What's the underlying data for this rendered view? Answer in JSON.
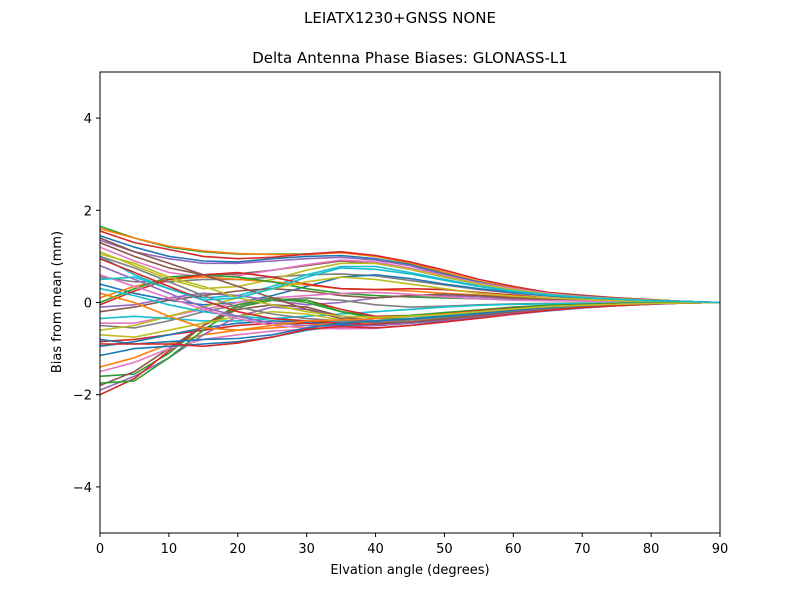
{
  "figure": {
    "suptitle": "LEIATX1230+GNSS NONE",
    "title": "Delta Antenna Phase Biases: GLONASS-L1"
  },
  "chart_data": {
    "type": "line",
    "title": "Delta Antenna Phase Biases: GLONASS-L1",
    "suptitle": "LEIATX1230+GNSS NONE",
    "xlabel": "Elvation angle (degrees)",
    "ylabel": "Bias from mean (mm)",
    "xlim": [
      0,
      90
    ],
    "ylim": [
      -5,
      5
    ],
    "xticks": [
      0,
      10,
      20,
      30,
      40,
      50,
      60,
      70,
      80,
      90
    ],
    "yticks": [
      -4,
      -2,
      0,
      2,
      4
    ],
    "ytick_labels": [
      "−4",
      "−2",
      "0",
      "2",
      "4"
    ],
    "grid": false,
    "legend": null,
    "x": [
      0,
      5,
      10,
      15,
      20,
      25,
      30,
      35,
      40,
      45,
      50,
      55,
      60,
      65,
      70,
      75,
      80,
      85,
      90
    ],
    "series": [
      {
        "name": "s1",
        "color": "#2ca02c",
        "values": [
          1.65,
          1.4,
          1.2,
          1.1,
          1.05,
          1.05,
          1.05,
          1.1,
          1.0,
          0.85,
          0.65,
          0.45,
          0.3,
          0.2,
          0.15,
          0.1,
          0.06,
          0.02,
          0.0
        ]
      },
      {
        "name": "s2",
        "color": "#ff7f0e",
        "values": [
          1.6,
          1.4,
          1.22,
          1.12,
          1.06,
          1.04,
          1.04,
          1.08,
          1.0,
          0.86,
          0.66,
          0.46,
          0.32,
          0.22,
          0.16,
          0.1,
          0.06,
          0.02,
          0.0
        ]
      },
      {
        "name": "s3",
        "color": "#d62728",
        "values": [
          1.55,
          1.3,
          1.15,
          1.0,
          0.95,
          0.98,
          1.05,
          1.1,
          1.02,
          0.88,
          0.7,
          0.5,
          0.35,
          0.22,
          0.15,
          0.1,
          0.06,
          0.02,
          0.0
        ]
      },
      {
        "name": "s4",
        "color": "#1f77b4",
        "values": [
          1.45,
          1.2,
          1.0,
          0.9,
          0.88,
          0.95,
          1.0,
          1.02,
          0.95,
          0.82,
          0.62,
          0.44,
          0.3,
          0.2,
          0.14,
          0.09,
          0.05,
          0.02,
          0.0
        ]
      },
      {
        "name": "s5",
        "color": "#9467bd",
        "values": [
          1.35,
          1.1,
          0.95,
          0.85,
          0.85,
          0.9,
          0.95,
          0.98,
          0.92,
          0.8,
          0.6,
          0.42,
          0.28,
          0.18,
          0.13,
          0.08,
          0.05,
          0.02,
          0.0
        ]
      },
      {
        "name": "s6",
        "color": "#8c564b",
        "values": [
          1.3,
          1.0,
          0.75,
          0.6,
          0.62,
          0.7,
          0.8,
          0.9,
          0.85,
          0.72,
          0.55,
          0.4,
          0.28,
          0.18,
          0.12,
          0.08,
          0.04,
          0.02,
          0.0
        ]
      },
      {
        "name": "s7",
        "color": "#e377c2",
        "values": [
          1.2,
          0.9,
          0.65,
          0.55,
          0.58,
          0.7,
          0.82,
          0.92,
          0.88,
          0.75,
          0.58,
          0.42,
          0.3,
          0.2,
          0.13,
          0.08,
          0.05,
          0.02,
          0.0
        ]
      },
      {
        "name": "s8",
        "color": "#7f7f7f",
        "values": [
          0.55,
          0.45,
          0.45,
          0.5,
          0.5,
          0.55,
          0.6,
          0.62,
          0.58,
          0.48,
          0.38,
          0.28,
          0.2,
          0.14,
          0.1,
          0.06,
          0.04,
          0.02,
          0.0
        ]
      },
      {
        "name": "s9",
        "color": "#bcbd22",
        "values": [
          1.1,
          0.8,
          0.5,
          0.3,
          0.35,
          0.5,
          0.7,
          0.85,
          0.85,
          0.72,
          0.56,
          0.4,
          0.28,
          0.18,
          0.12,
          0.08,
          0.05,
          0.02,
          0.0
        ]
      },
      {
        "name": "s10",
        "color": "#17becf",
        "values": [
          1.0,
          0.6,
          0.3,
          0.1,
          0.15,
          0.35,
          0.6,
          0.78,
          0.78,
          0.65,
          0.5,
          0.36,
          0.25,
          0.17,
          0.11,
          0.07,
          0.04,
          0.02,
          0.0
        ]
      },
      {
        "name": "s11",
        "color": "#1f77b4",
        "values": [
          0.4,
          0.2,
          0.05,
          -0.05,
          0.0,
          0.15,
          0.35,
          0.55,
          0.6,
          0.52,
          0.4,
          0.3,
          0.22,
          0.15,
          0.1,
          0.06,
          0.04,
          0.02,
          0.0
        ]
      },
      {
        "name": "s12",
        "color": "#ff7f0e",
        "values": [
          0.1,
          0.35,
          0.5,
          0.55,
          0.5,
          0.45,
          0.38,
          0.3,
          0.28,
          0.25,
          0.2,
          0.16,
          0.12,
          0.08,
          0.06,
          0.04,
          0.02,
          0.01,
          0.0
        ]
      },
      {
        "name": "s13",
        "color": "#2ca02c",
        "values": [
          0.0,
          0.3,
          0.55,
          0.6,
          0.55,
          0.45,
          0.3,
          0.2,
          0.15,
          0.12,
          0.1,
          0.08,
          0.06,
          0.05,
          0.04,
          0.03,
          0.02,
          0.01,
          0.0
        ]
      },
      {
        "name": "s14",
        "color": "#d62728",
        "values": [
          -0.05,
          0.25,
          0.5,
          0.6,
          0.65,
          0.55,
          0.4,
          0.3,
          0.28,
          0.3,
          0.28,
          0.22,
          0.16,
          0.1,
          0.07,
          0.05,
          0.03,
          0.01,
          0.0
        ]
      },
      {
        "name": "s15",
        "color": "#9467bd",
        "values": [
          -0.1,
          -0.05,
          0.1,
          0.2,
          0.15,
          0.05,
          -0.05,
          0.0,
          0.1,
          0.15,
          0.15,
          0.12,
          0.09,
          0.06,
          0.04,
          0.03,
          0.02,
          0.01,
          0.0
        ]
      },
      {
        "name": "s16",
        "color": "#8c564b",
        "values": [
          -0.2,
          -0.1,
          0.05,
          0.15,
          0.25,
          0.3,
          0.25,
          0.15,
          0.1,
          0.15,
          0.18,
          0.15,
          0.1,
          0.07,
          0.05,
          0.03,
          0.02,
          0.01,
          0.0
        ]
      },
      {
        "name": "s17",
        "color": "#e377c2",
        "values": [
          -0.45,
          -0.45,
          -0.3,
          -0.15,
          0.0,
          0.1,
          0.15,
          0.2,
          0.22,
          0.18,
          0.12,
          0.08,
          0.05,
          0.04,
          0.03,
          0.02,
          0.01,
          0.0,
          0.0
        ]
      },
      {
        "name": "s18",
        "color": "#7f7f7f",
        "values": [
          -0.5,
          -0.55,
          -0.4,
          -0.2,
          -0.05,
          0.05,
          0.1,
          0.05,
          -0.05,
          -0.1,
          -0.08,
          -0.05,
          -0.03,
          -0.02,
          -0.01,
          -0.01,
          0.0,
          0.0,
          0.0
        ]
      },
      {
        "name": "s19",
        "color": "#bcbd22",
        "values": [
          -0.6,
          -0.5,
          -0.3,
          -0.1,
          0.1,
          0.3,
          0.45,
          0.55,
          0.5,
          0.4,
          0.3,
          0.2,
          0.14,
          0.1,
          0.07,
          0.04,
          0.02,
          0.01,
          0.0
        ]
      },
      {
        "name": "s20",
        "color": "#17becf",
        "values": [
          -0.35,
          -0.3,
          -0.35,
          -0.4,
          -0.4,
          -0.35,
          -0.3,
          -0.25,
          -0.2,
          -0.15,
          -0.1,
          -0.06,
          -0.04,
          -0.03,
          -0.02,
          -0.01,
          0.0,
          0.0,
          0.0
        ]
      },
      {
        "name": "s21",
        "color": "#d62728",
        "values": [
          -0.85,
          -0.8,
          -0.7,
          -0.6,
          -0.5,
          -0.45,
          -0.45,
          -0.5,
          -0.5,
          -0.45,
          -0.38,
          -0.3,
          -0.22,
          -0.15,
          -0.1,
          -0.06,
          -0.03,
          -0.01,
          0.0
        ]
      },
      {
        "name": "s22",
        "color": "#1f77b4",
        "values": [
          -0.95,
          -0.85,
          -0.7,
          -0.55,
          -0.45,
          -0.4,
          -0.42,
          -0.48,
          -0.5,
          -0.45,
          -0.38,
          -0.3,
          -0.22,
          -0.15,
          -0.1,
          -0.06,
          -0.03,
          -0.01,
          0.0
        ]
      },
      {
        "name": "s23",
        "color": "#ff7f0e",
        "values": [
          -1.4,
          -1.2,
          -0.9,
          -0.7,
          -0.6,
          -0.55,
          -0.5,
          -0.45,
          -0.42,
          -0.38,
          -0.32,
          -0.26,
          -0.2,
          -0.14,
          -0.1,
          -0.06,
          -0.03,
          -0.01,
          0.0
        ]
      },
      {
        "name": "s24",
        "color": "#2ca02c",
        "values": [
          -1.6,
          -1.55,
          -1.1,
          -0.5,
          -0.05,
          0.1,
          0.0,
          -0.2,
          -0.3,
          -0.28,
          -0.22,
          -0.16,
          -0.1,
          -0.06,
          -0.04,
          -0.02,
          -0.01,
          0.0,
          0.0
        ]
      },
      {
        "name": "s25",
        "color": "#9467bd",
        "values": [
          -1.9,
          -1.6,
          -1.2,
          -0.7,
          -0.3,
          -0.1,
          -0.15,
          -0.3,
          -0.4,
          -0.38,
          -0.3,
          -0.22,
          -0.15,
          -0.1,
          -0.06,
          -0.04,
          -0.02,
          -0.01,
          0.0
        ]
      },
      {
        "name": "s26",
        "color": "#d62728",
        "values": [
          -2.0,
          -1.65,
          -1.05,
          -0.5,
          -0.1,
          0.05,
          0.05,
          -0.15,
          -0.3,
          -0.3,
          -0.25,
          -0.18,
          -0.12,
          -0.08,
          -0.05,
          -0.03,
          -0.01,
          0.0,
          0.0
        ]
      },
      {
        "name": "s27",
        "color": "#8c564b",
        "values": [
          -1.8,
          -1.5,
          -1.0,
          -0.5,
          -0.15,
          -0.05,
          -0.1,
          -0.3,
          -0.45,
          -0.42,
          -0.35,
          -0.27,
          -0.19,
          -0.12,
          -0.08,
          -0.05,
          -0.02,
          -0.01,
          0.0
        ]
      },
      {
        "name": "s28",
        "color": "#e377c2",
        "values": [
          -1.5,
          -1.3,
          -1.0,
          -0.8,
          -0.7,
          -0.62,
          -0.58,
          -0.55,
          -0.55,
          -0.5,
          -0.42,
          -0.34,
          -0.26,
          -0.18,
          -0.12,
          -0.07,
          -0.04,
          -0.01,
          0.0
        ]
      },
      {
        "name": "s29",
        "color": "#1f77b4",
        "values": [
          -1.15,
          -1.0,
          -0.95,
          -0.9,
          -0.85,
          -0.75,
          -0.6,
          -0.5,
          -0.48,
          -0.45,
          -0.4,
          -0.33,
          -0.25,
          -0.18,
          -0.12,
          -0.07,
          -0.04,
          -0.01,
          0.0
        ]
      },
      {
        "name": "s30",
        "color": "#2ca02c",
        "values": [
          -1.75,
          -1.7,
          -1.2,
          -0.6,
          -0.1,
          0.05,
          0.05,
          -0.2,
          -0.35,
          -0.35,
          -0.28,
          -0.2,
          -0.13,
          -0.08,
          -0.05,
          -0.03,
          -0.01,
          0.0,
          0.0
        ]
      },
      {
        "name": "s31",
        "color": "#bcbd22",
        "values": [
          -0.7,
          -0.75,
          -0.6,
          -0.45,
          -0.3,
          -0.2,
          -0.25,
          -0.38,
          -0.45,
          -0.42,
          -0.36,
          -0.28,
          -0.2,
          -0.13,
          -0.08,
          -0.05,
          -0.02,
          -0.01,
          0.0
        ]
      },
      {
        "name": "s32",
        "color": "#17becf",
        "values": [
          0.3,
          0.15,
          -0.05,
          -0.2,
          -0.3,
          -0.35,
          -0.4,
          -0.42,
          -0.4,
          -0.35,
          -0.28,
          -0.2,
          -0.14,
          -0.09,
          -0.06,
          -0.04,
          -0.02,
          -0.01,
          0.0
        ]
      },
      {
        "name": "s33",
        "color": "#d62728",
        "values": [
          0.95,
          0.65,
          0.35,
          0.05,
          -0.2,
          -0.35,
          -0.4,
          -0.45,
          -0.48,
          -0.44,
          -0.36,
          -0.28,
          -0.2,
          -0.13,
          -0.08,
          -0.05,
          -0.02,
          -0.01,
          0.0
        ]
      },
      {
        "name": "s34",
        "color": "#9467bd",
        "values": [
          0.8,
          0.5,
          0.2,
          -0.1,
          -0.3,
          -0.45,
          -0.5,
          -0.52,
          -0.5,
          -0.45,
          -0.38,
          -0.3,
          -0.22,
          -0.15,
          -0.1,
          -0.06,
          -0.03,
          -0.01,
          0.0
        ]
      },
      {
        "name": "s35",
        "color": "#e377c2",
        "values": [
          0.6,
          0.35,
          0.1,
          -0.15,
          -0.35,
          -0.5,
          -0.55,
          -0.57,
          -0.56,
          -0.5,
          -0.42,
          -0.34,
          -0.25,
          -0.17,
          -0.11,
          -0.07,
          -0.03,
          -0.01,
          0.0
        ]
      },
      {
        "name": "s36",
        "color": "#8c564b",
        "values": [
          1.4,
          1.1,
          0.85,
          0.6,
          0.35,
          0.1,
          -0.15,
          -0.35,
          -0.45,
          -0.42,
          -0.36,
          -0.28,
          -0.2,
          -0.13,
          -0.08,
          -0.05,
          -0.02,
          -0.01,
          0.0
        ]
      },
      {
        "name": "s37",
        "color": "#7f7f7f",
        "values": [
          1.0,
          0.75,
          0.45,
          0.15,
          -0.1,
          -0.25,
          -0.35,
          -0.4,
          -0.42,
          -0.38,
          -0.32,
          -0.25,
          -0.18,
          -0.12,
          -0.08,
          -0.05,
          -0.02,
          -0.01,
          0.0
        ]
      },
      {
        "name": "s38",
        "color": "#ff7f0e",
        "values": [
          0.2,
          0.0,
          -0.3,
          -0.55,
          -0.6,
          -0.5,
          -0.4,
          -0.38,
          -0.35,
          -0.3,
          -0.25,
          -0.2,
          -0.14,
          -0.09,
          -0.06,
          -0.04,
          -0.02,
          -0.01,
          0.0
        ]
      },
      {
        "name": "s39",
        "color": "#1f77b4",
        "values": [
          -0.8,
          -0.9,
          -0.85,
          -0.8,
          -0.78,
          -0.7,
          -0.55,
          -0.45,
          -0.4,
          -0.36,
          -0.3,
          -0.24,
          -0.17,
          -0.11,
          -0.07,
          -0.04,
          -0.02,
          -0.01,
          0.0
        ]
      },
      {
        "name": "s40",
        "color": "#d62728",
        "values": [
          -0.9,
          -0.9,
          -0.9,
          -0.95,
          -0.88,
          -0.75,
          -0.58,
          -0.52,
          -0.55,
          -0.5,
          -0.42,
          -0.34,
          -0.25,
          -0.17,
          -0.11,
          -0.07,
          -0.03,
          -0.01,
          0.0
        ]
      },
      {
        "name": "s41",
        "color": "#bcbd22",
        "values": [
          1.05,
          0.85,
          0.55,
          0.35,
          0.1,
          -0.05,
          -0.2,
          -0.3,
          -0.32,
          -0.3,
          -0.26,
          -0.2,
          -0.14,
          -0.09,
          -0.06,
          -0.04,
          -0.02,
          -0.01,
          0.0
        ]
      },
      {
        "name": "s42",
        "color": "#17becf",
        "values": [
          0.5,
          0.55,
          0.3,
          0.05,
          0.1,
          0.3,
          0.55,
          0.75,
          0.72,
          0.62,
          0.48,
          0.35,
          0.24,
          0.16,
          0.11,
          0.07,
          0.04,
          0.02,
          0.0
        ]
      }
    ]
  }
}
